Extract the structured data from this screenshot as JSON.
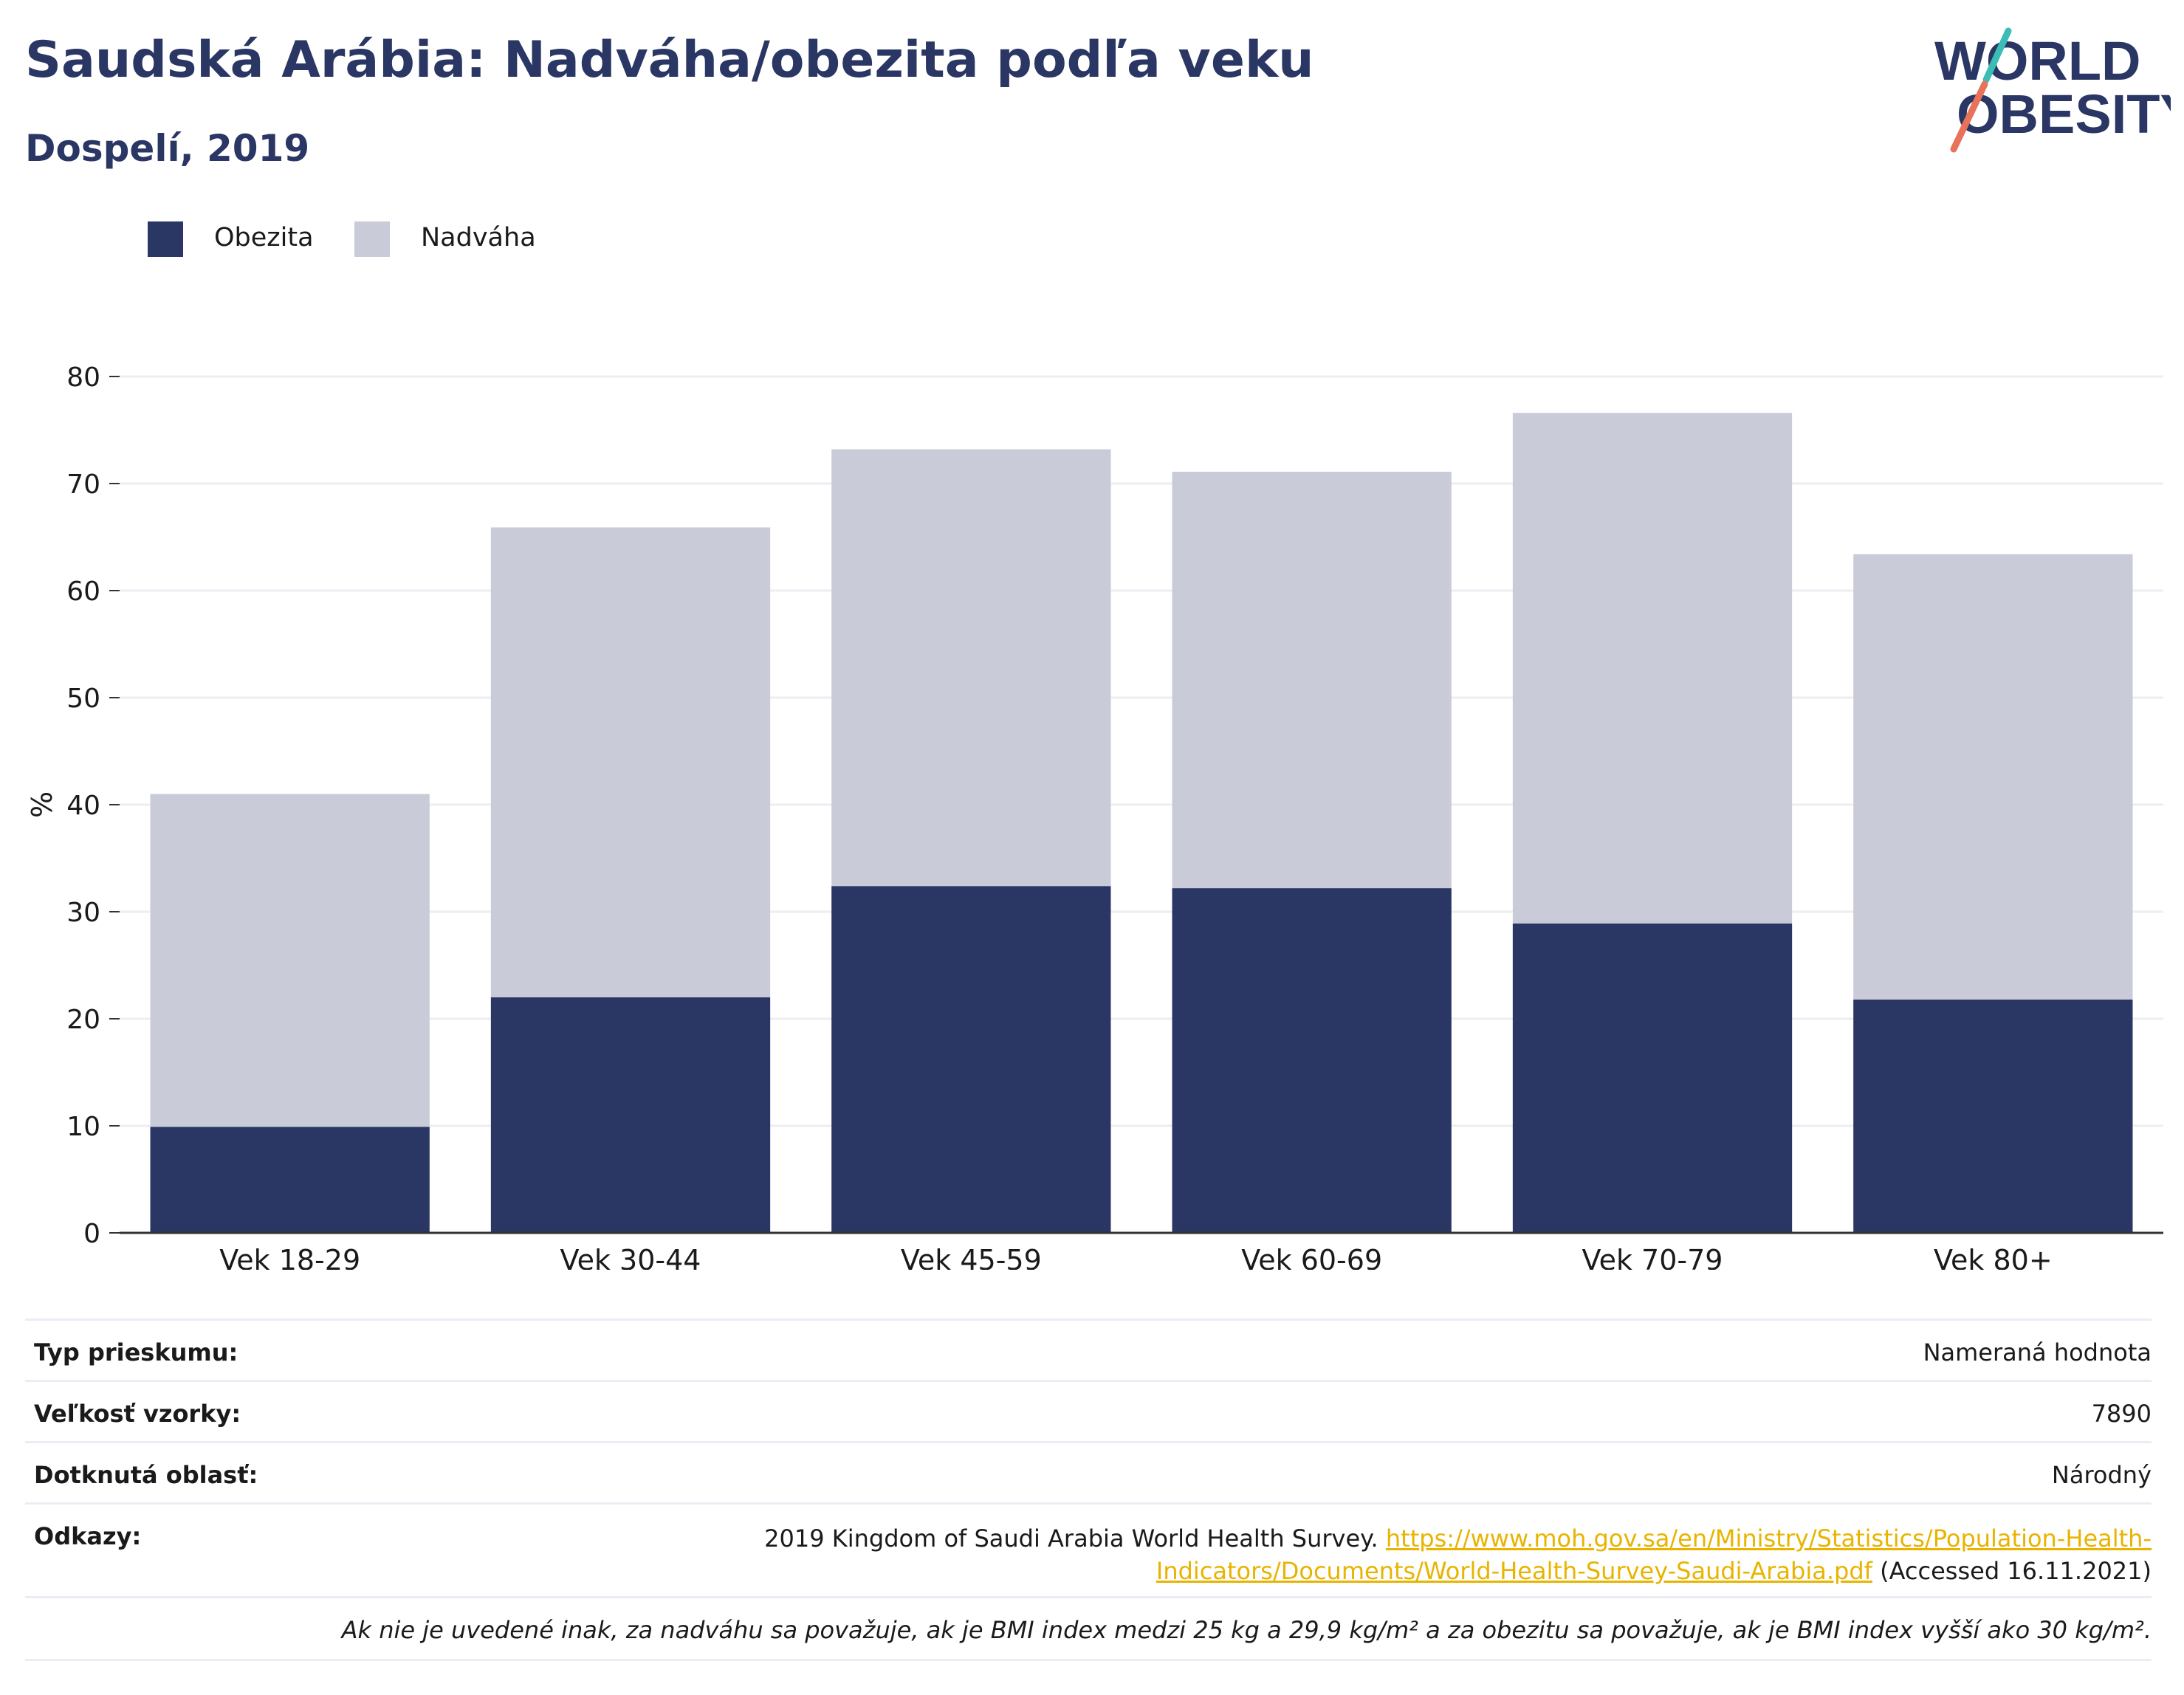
{
  "header": {
    "title": "Saudská Arábia: Nadváha/obezita podľa veku",
    "subtitle": "Dospelí, 2019"
  },
  "logo": {
    "line1": "WORLD",
    "line2": "OBESITY",
    "colors": {
      "text": "#2a3663",
      "slash_top": "#3bbdb5",
      "slash_bottom": "#e8725a"
    }
  },
  "legend": [
    {
      "label": "Obezita",
      "color": "#2a3663"
    },
    {
      "label": "Nadváha",
      "color": "#c9ccd8"
    }
  ],
  "chart_data": {
    "type": "bar",
    "stacked": true,
    "categories": [
      "Vek 18-29",
      "Vek 30-44",
      "Vek 45-59",
      "Vek 60-69",
      "Vek 70-79",
      "Vek 80+"
    ],
    "series": [
      {
        "name": "Obezita",
        "color": "#2a3663",
        "values": [
          9.9,
          22.0,
          32.4,
          32.2,
          28.9,
          21.8
        ]
      },
      {
        "name": "Nadváha",
        "color": "#c9ccd8",
        "values": [
          31.1,
          43.9,
          40.8,
          38.9,
          47.7,
          41.6
        ]
      }
    ],
    "ylabel": "%",
    "ylim": [
      0,
      80
    ],
    "yticks": [
      0,
      10,
      20,
      30,
      40,
      50,
      60,
      70,
      80
    ],
    "grid": true,
    "legend_position": "top-left"
  },
  "info": {
    "survey_type": {
      "label": "Typ prieskumu:",
      "value": "Nameraná hodnota"
    },
    "sample_size": {
      "label": "Veľkosť vzorky:",
      "value": "7890"
    },
    "area": {
      "label": "Dotknutá oblasť:",
      "value": "Národný"
    },
    "references": {
      "label": "Odkazy:",
      "text": "2019 Kingdom of Saudi Arabia World Health Survey.",
      "link_line1": "https://www.moh.gov.sa/en/Ministry/Statistics/Population-Health-",
      "link_line2": "Indicators/Documents/World-Health-Survey-Saudi-Arabia.pdf",
      "accessed": "(Accessed 16.11.2021)"
    },
    "footnote": "Ak nie je uvedené inak, za nadváhu sa považuje, ak je BMI index medzi 25 kg a 29,9 kg/m² a za obezitu sa považuje, ak je BMI index vyšší ako 30 kg/m²."
  }
}
